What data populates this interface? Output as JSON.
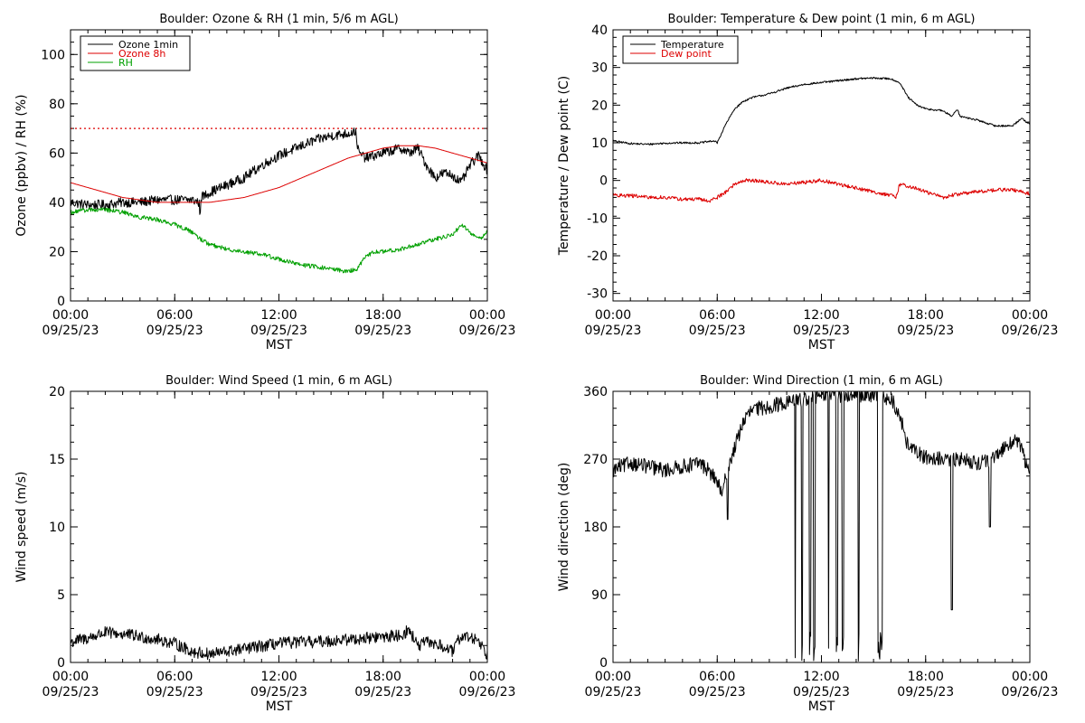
{
  "chart_data": [
    {
      "id": "ozone_rh",
      "type": "line",
      "title": "Boulder: Ozone & RH (1 min, 5/6 m AGL)",
      "xlabel": "MST",
      "ylabel": "Ozone (ppbv) / RH (%)",
      "x_unit": "hours since 09/25/23 00:00 MST",
      "xlim": [
        0,
        24
      ],
      "ylim": [
        0,
        110
      ],
      "yticks": [
        0,
        20,
        40,
        60,
        80,
        100
      ],
      "xtick_labels": [
        {
          "x": 0,
          "time": "00:00",
          "date": "09/25/23"
        },
        {
          "x": 6,
          "time": "06:00",
          "date": "09/25/23"
        },
        {
          "x": 12,
          "time": "12:00",
          "date": "09/25/23"
        },
        {
          "x": 18,
          "time": "18:00",
          "date": "09/25/23"
        },
        {
          "x": 24,
          "time": "00:00",
          "date": "09/26/23"
        }
      ],
      "hline": {
        "y": 70,
        "color": "#dd0000",
        "style": "dotted"
      },
      "legend": {
        "placement": "top-left",
        "entries": [
          {
            "label": "Ozone 1min",
            "color": "#000000"
          },
          {
            "label": "Ozone 8h",
            "color": "#dd0000"
          },
          {
            "label": "RH",
            "color": "#00a000"
          }
        ]
      },
      "series": [
        {
          "name": "Ozone 1min",
          "color": "#000000",
          "noise": 2.0,
          "x": [
            0,
            1,
            2,
            3,
            4,
            5,
            6,
            7,
            7.4,
            7.45,
            7.5,
            8,
            9,
            10,
            11,
            12,
            13,
            14,
            15,
            16,
            16.4,
            16.6,
            17,
            18,
            19,
            19.5,
            20,
            20.5,
            21,
            21.5,
            22,
            22.5,
            23,
            23.5,
            24
          ],
          "y": [
            40,
            39,
            39,
            40,
            40,
            41,
            41,
            41,
            40,
            33,
            42,
            44,
            47,
            50,
            55,
            59,
            62,
            65,
            67,
            68,
            69,
            60,
            58,
            60,
            62,
            60,
            62,
            55,
            50,
            52,
            51,
            48,
            55,
            59,
            53
          ]
        },
        {
          "name": "Ozone 8h",
          "color": "#dd0000",
          "noise": 0,
          "x": [
            0,
            1,
            2,
            3,
            4,
            5,
            6,
            7,
            8,
            9,
            10,
            11,
            12,
            13,
            14,
            15,
            16,
            17,
            18,
            19,
            20,
            21,
            22,
            23,
            24
          ],
          "y": [
            48,
            46,
            44,
            42,
            41,
            40,
            40,
            40,
            40,
            41,
            42,
            44,
            46,
            49,
            52,
            55,
            58,
            60,
            62,
            63,
            63,
            62,
            60,
            58,
            56
          ]
        },
        {
          "name": "RH",
          "color": "#00a000",
          "noise": 0.9,
          "x": [
            0,
            1,
            2,
            3,
            4,
            5,
            6,
            7,
            7.5,
            8,
            9,
            10,
            11,
            12,
            13,
            14,
            15,
            16,
            16.5,
            17,
            17.5,
            18,
            19,
            20,
            21,
            22,
            22.5,
            23,
            23.5,
            24
          ],
          "y": [
            36,
            37,
            37,
            36,
            34,
            33,
            31,
            28,
            25,
            23,
            21,
            20,
            19,
            17,
            15,
            14,
            13,
            12,
            13,
            18,
            20,
            20,
            21,
            23,
            25,
            27,
            31,
            28,
            25,
            28
          ]
        }
      ]
    },
    {
      "id": "temp_dew",
      "type": "line",
      "title": "Boulder: Temperature & Dew point (1 min, 6 m AGL)",
      "xlabel": "MST",
      "ylabel": "Temperature / Dew point (C)",
      "x_unit": "hours since 09/25/23 00:00 MST",
      "xlim": [
        0,
        24
      ],
      "ylim": [
        -32,
        40
      ],
      "yticks": [
        -30,
        -20,
        -10,
        0,
        10,
        20,
        30,
        40
      ],
      "xtick_labels": [
        {
          "x": 0,
          "time": "00:00",
          "date": "09/25/23"
        },
        {
          "x": 6,
          "time": "06:00",
          "date": "09/25/23"
        },
        {
          "x": 12,
          "time": "12:00",
          "date": "09/25/23"
        },
        {
          "x": 18,
          "time": "18:00",
          "date": "09/25/23"
        },
        {
          "x": 24,
          "time": "00:00",
          "date": "09/26/23"
        }
      ],
      "legend": {
        "placement": "top-left",
        "entries": [
          {
            "label": "Temperature",
            "color": "#000000"
          },
          {
            "label": "Dew point",
            "color": "#dd0000"
          }
        ]
      },
      "series": [
        {
          "name": "Temperature",
          "color": "#000000",
          "noise": 0.25,
          "x": [
            0,
            1,
            2,
            3,
            4,
            5,
            5.8,
            6,
            6.5,
            7,
            7.5,
            8,
            9,
            10,
            11,
            12,
            13,
            14,
            15,
            16,
            16.5,
            17,
            17.5,
            18,
            19,
            19.5,
            19.8,
            20,
            21,
            22,
            23,
            23.5,
            24
          ],
          "y": [
            10.5,
            9.8,
            9.6,
            9.9,
            10,
            10,
            10.5,
            10,
            15,
            19,
            21,
            22,
            23,
            24.5,
            25.5,
            26,
            26.5,
            27,
            27.2,
            27,
            26,
            22,
            20,
            19,
            18.5,
            17,
            19,
            17,
            16,
            14.5,
            14.5,
            16.5,
            15
          ]
        },
        {
          "name": "Dew point",
          "color": "#dd0000",
          "noise": 0.5,
          "x": [
            0,
            1,
            2,
            3,
            4,
            5,
            5.5,
            6,
            6.5,
            7,
            7.5,
            8,
            9,
            10,
            11,
            12,
            13,
            14,
            15,
            16,
            16.3,
            16.5,
            17,
            18,
            19,
            20,
            21,
            22,
            23,
            24
          ],
          "y": [
            -4,
            -4,
            -4.5,
            -4.5,
            -5,
            -5,
            -5.5,
            -4.5,
            -3,
            -1,
            0,
            0,
            -0.5,
            -1,
            -0.5,
            0,
            -1,
            -2,
            -3,
            -4,
            -4.5,
            -1,
            -1.5,
            -3,
            -4.5,
            -3.5,
            -3,
            -2.5,
            -2.5,
            -3.5
          ]
        }
      ]
    },
    {
      "id": "wind_speed",
      "type": "line",
      "title": "Boulder: Wind Speed (1 min, 6 m AGL)",
      "xlabel": "MST",
      "ylabel": "Wind speed (m/s)",
      "x_unit": "hours since 09/25/23 00:00 MST",
      "xlim": [
        0,
        24
      ],
      "ylim": [
        0,
        20
      ],
      "yticks": [
        0,
        5,
        10,
        15,
        20
      ],
      "xtick_labels": [
        {
          "x": 0,
          "time": "00:00",
          "date": "09/25/23"
        },
        {
          "x": 6,
          "time": "06:00",
          "date": "09/25/23"
        },
        {
          "x": 12,
          "time": "12:00",
          "date": "09/25/23"
        },
        {
          "x": 18,
          "time": "18:00",
          "date": "09/25/23"
        },
        {
          "x": 24,
          "time": "00:00",
          "date": "09/26/23"
        }
      ],
      "series": [
        {
          "name": "Wind speed",
          "color": "#000000",
          "noise": 0.45,
          "x": [
            0,
            1,
            2,
            3,
            4,
            5,
            6,
            7,
            8,
            9,
            10,
            11,
            12,
            13,
            14,
            15,
            16,
            17,
            18,
            19,
            19.5,
            20,
            20.5,
            21,
            22,
            22.5,
            23,
            23.5,
            24
          ],
          "y": [
            1.5,
            1.8,
            2.2,
            2.1,
            1.9,
            1.7,
            1.4,
            0.8,
            0.6,
            0.8,
            1.0,
            1.2,
            1.4,
            1.5,
            1.5,
            1.6,
            1.7,
            1.8,
            1.9,
            2.0,
            2.4,
            1.2,
            1.5,
            1.4,
            0.8,
            2.0,
            1.8,
            1.7,
            0.5
          ]
        }
      ]
    },
    {
      "id": "wind_dir",
      "type": "line",
      "title": "Boulder: Wind Direction (1 min, 6 m AGL)",
      "xlabel": "MST",
      "ylabel": "Wind direction (deg)",
      "x_unit": "hours since 09/25/23 00:00 MST",
      "xlim": [
        0,
        24
      ],
      "ylim": [
        0,
        360
      ],
      "yticks": [
        0,
        90,
        180,
        270,
        360
      ],
      "xtick_labels": [
        {
          "x": 0,
          "time": "00:00",
          "date": "09/25/23"
        },
        {
          "x": 6,
          "time": "06:00",
          "date": "09/25/23"
        },
        {
          "x": 12,
          "time": "12:00",
          "date": "09/25/23"
        },
        {
          "x": 18,
          "time": "18:00",
          "date": "09/25/23"
        },
        {
          "x": 24,
          "time": "00:00",
          "date": "09/26/23"
        }
      ],
      "series": [
        {
          "name": "Wind direction",
          "color": "#000000",
          "noise": 10,
          "x": [
            0,
            1,
            2,
            3,
            4,
            5,
            5.5,
            6,
            6.3,
            6.5,
            7,
            7.5,
            8,
            9,
            10,
            11,
            12,
            13,
            14,
            15,
            16,
            16.5,
            17,
            18,
            19,
            19.5,
            20,
            21,
            22,
            22.5,
            23,
            23.5,
            24
          ],
          "y": [
            255,
            265,
            260,
            255,
            260,
            265,
            255,
            240,
            220,
            250,
            285,
            320,
            335,
            340,
            345,
            350,
            355,
            355,
            355,
            355,
            350,
            330,
            285,
            272,
            270,
            268,
            270,
            265,
            270,
            285,
            295,
            288,
            245
          ]
        }
      ]
    }
  ]
}
